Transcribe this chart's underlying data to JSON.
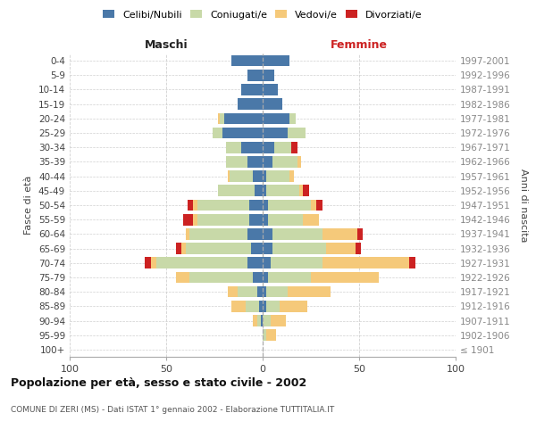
{
  "age_groups": [
    "100+",
    "95-99",
    "90-94",
    "85-89",
    "80-84",
    "75-79",
    "70-74",
    "65-69",
    "60-64",
    "55-59",
    "50-54",
    "45-49",
    "40-44",
    "35-39",
    "30-34",
    "25-29",
    "20-24",
    "15-19",
    "10-14",
    "5-9",
    "0-4"
  ],
  "birth_years": [
    "≤ 1901",
    "1902-1906",
    "1907-1911",
    "1912-1916",
    "1917-1921",
    "1922-1926",
    "1927-1931",
    "1932-1936",
    "1937-1941",
    "1942-1946",
    "1947-1951",
    "1952-1956",
    "1957-1961",
    "1962-1966",
    "1967-1971",
    "1972-1976",
    "1977-1981",
    "1982-1986",
    "1987-1991",
    "1992-1996",
    "1997-2001"
  ],
  "colors": {
    "celibi": "#4a78a8",
    "coniugati": "#c8d9a8",
    "vedovi": "#f5c97a",
    "divorziati": "#cc2222"
  },
  "male": {
    "celibi": [
      0,
      0,
      1,
      2,
      3,
      5,
      8,
      6,
      8,
      7,
      7,
      4,
      5,
      8,
      11,
      21,
      20,
      13,
      11,
      8,
      16
    ],
    "coniugati": [
      0,
      0,
      2,
      7,
      10,
      33,
      47,
      34,
      30,
      27,
      27,
      19,
      12,
      11,
      8,
      5,
      2,
      0,
      0,
      0,
      0
    ],
    "vedovi": [
      0,
      0,
      2,
      7,
      5,
      7,
      3,
      2,
      2,
      2,
      2,
      0,
      1,
      0,
      0,
      0,
      1,
      0,
      0,
      0,
      0
    ],
    "divorziati": [
      0,
      0,
      0,
      0,
      0,
      0,
      3,
      3,
      0,
      5,
      3,
      0,
      0,
      0,
      0,
      0,
      0,
      0,
      0,
      0,
      0
    ]
  },
  "female": {
    "celibi": [
      0,
      0,
      0,
      2,
      2,
      3,
      4,
      5,
      5,
      3,
      3,
      2,
      2,
      5,
      6,
      13,
      14,
      10,
      8,
      6,
      14
    ],
    "coniugati": [
      0,
      2,
      4,
      7,
      11,
      22,
      27,
      28,
      26,
      18,
      22,
      17,
      12,
      13,
      9,
      9,
      3,
      0,
      0,
      0,
      0
    ],
    "vedovi": [
      0,
      5,
      8,
      14,
      22,
      35,
      45,
      15,
      18,
      8,
      3,
      2,
      2,
      2,
      0,
      0,
      0,
      0,
      0,
      0,
      0
    ],
    "divorziati": [
      0,
      0,
      0,
      0,
      0,
      0,
      3,
      3,
      3,
      0,
      3,
      3,
      0,
      0,
      3,
      0,
      0,
      0,
      0,
      0,
      0
    ]
  },
  "title": "Popolazione per età, sesso e stato civile - 2002",
  "subtitle": "COMUNE DI ZERI (MS) - Dati ISTAT 1° gennaio 2002 - Elaborazione TUTTITALIA.IT",
  "xlabel_left": "Maschi",
  "xlabel_right": "Femmine",
  "ylabel_left": "Fasce di età",
  "ylabel_right": "Anni di nascita",
  "legend_labels": [
    "Celibi/Nubili",
    "Coniugati/e",
    "Vedovi/e",
    "Divorziati/e"
  ],
  "xlim": 100,
  "background_color": "#ffffff",
  "grid_color": "#cccccc"
}
